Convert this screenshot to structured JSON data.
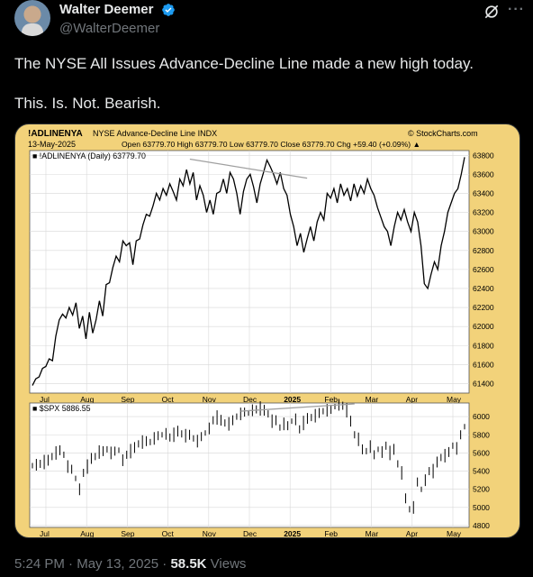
{
  "user": {
    "display_name": "Walter Deemer",
    "handle": "@WalterDeemer"
  },
  "tweet": {
    "line1": "The NYSE All Issues Advance-Decline Line made a new high today.",
    "line2": "This. Is. Not. Bearish.",
    "time": "5:24 PM",
    "date": "May 13, 2025",
    "views_count": "58.5K",
    "views_label": "Views",
    "sep": "·"
  },
  "chart_data": [
    {
      "type": "line",
      "header": {
        "symbol": "!ADLINENYA",
        "name": "NYSE Advance-Decline Line",
        "exchange": "INDX",
        "source": "© StockCharts.com",
        "date": "13-May-2025",
        "ohlc": "Open 63779.70  High 63779.70  Low 63779.70  Close 63779.70  Chg +59.40 (+0.09%) ▲"
      },
      "legend": "■ !ADLINENYA (Daily) 63779.70",
      "ylim": [
        61300,
        63850
      ],
      "y_ticks": [
        61400,
        61600,
        61800,
        62000,
        62200,
        62400,
        62600,
        62800,
        63000,
        63200,
        63400,
        63600,
        63800
      ],
      "x_ticks": [
        "Jul",
        "Aug",
        "Sep",
        "Oct",
        "Nov",
        "Dec",
        "2025",
        "Feb",
        "Mar",
        "Apr",
        "May"
      ],
      "series": [
        {
          "values": [
            61380,
            61450,
            61470,
            61560,
            61580,
            61660,
            61640,
            61900,
            62070,
            62130,
            62090,
            62200,
            62120,
            62250,
            61980,
            62110,
            61870,
            62150,
            61930,
            62070,
            62270,
            62110,
            62440,
            62460,
            62620,
            62740,
            62680,
            62900,
            62850,
            62880,
            62650,
            62900,
            62920,
            63070,
            63180,
            63160,
            63270,
            63400,
            63330,
            63450,
            63380,
            63500,
            63420,
            63330,
            63550,
            63480,
            63650,
            63500,
            63620,
            63330,
            63480,
            63380,
            63200,
            63330,
            63180,
            63400,
            63420,
            63550,
            63400,
            63620,
            63550,
            63400,
            63180,
            63420,
            63550,
            63600,
            63470,
            63300,
            63500,
            63620,
            63750,
            63680,
            63600,
            63500,
            63620,
            63450,
            63380,
            63180,
            63050,
            62850,
            62980,
            62780,
            62920,
            63050,
            62900,
            63100,
            63200,
            63120,
            63400,
            63350,
            63450,
            63300,
            63500,
            63380,
            63450,
            63320,
            63500,
            63370,
            63480,
            63400,
            63550,
            63450,
            63380,
            63250,
            63150,
            63050,
            63000,
            62850,
            63050,
            63200,
            63120,
            63230,
            63100,
            63000,
            63200,
            63100,
            62850,
            62450,
            62400,
            62550,
            62680,
            62600,
            62850,
            63000,
            63200,
            63300,
            63400,
            63450,
            63600,
            63780
          ]
        }
      ],
      "annotation": "trendline"
    },
    {
      "type": "line",
      "legend": "■ $SPX 5886.55",
      "ylim": [
        4780,
        6150
      ],
      "y_ticks": [
        4800,
        5000,
        5200,
        5400,
        5600,
        5800,
        6000
      ],
      "x_ticks": [
        "Jul",
        "Aug",
        "Sep",
        "Oct",
        "Nov",
        "Dec",
        "2025",
        "Feb",
        "Mar",
        "Apr",
        "May"
      ],
      "series": [
        {
          "values": [
            5460,
            5470,
            5480,
            5500,
            5520,
            5560,
            5600,
            5630,
            5580,
            5450,
            5420,
            5320,
            5200,
            5380,
            5450,
            5540,
            5560,
            5610,
            5620,
            5640,
            5600,
            5620,
            5630,
            5520,
            5580,
            5620,
            5660,
            5700,
            5720,
            5730,
            5720,
            5760,
            5790,
            5800,
            5810,
            5770,
            5800,
            5840,
            5810,
            5790,
            5800,
            5760,
            5730,
            5780,
            5820,
            5870,
            5960,
            5990,
            5960,
            5930,
            5920,
            5960,
            6000,
            6030,
            6050,
            6040,
            6070,
            6080,
            6090,
            6070,
            6030,
            5950,
            5960,
            5880,
            5920,
            5900,
            5950,
            5970,
            5860,
            5930,
            5980,
            5990,
            6010,
            6040,
            6060,
            6070,
            6080,
            6110,
            6130,
            6120,
            6070,
            5950,
            5800,
            5750,
            5640,
            5620,
            5670,
            5580,
            5640,
            5610,
            5680,
            5600,
            5640,
            5480,
            5380,
            5100,
            4980,
            5000,
            5280,
            5200,
            5300,
            5400,
            5400,
            5500,
            5550,
            5570,
            5610,
            5680,
            5650,
            5800,
            5890
          ]
        }
      ],
      "annotation": "trendline"
    }
  ],
  "colors": {
    "verified": "#1d9bf0",
    "card_bg": "#f2d27a",
    "plot_bg": "#ffffff",
    "line": "#000000",
    "trend": "#a0a0a0"
  },
  "icons": {
    "verified": "verified-badge-icon",
    "grok": "grok-icon",
    "more": "more-icon"
  }
}
